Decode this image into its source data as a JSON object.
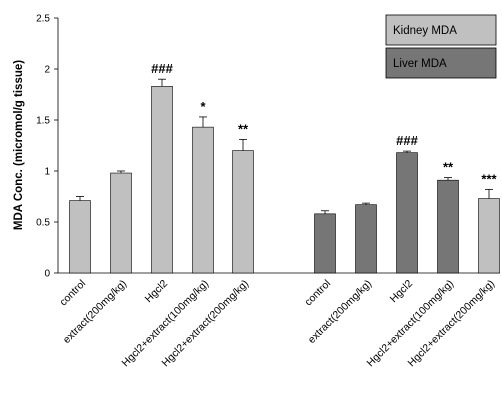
{
  "chart_data": {
    "type": "bar",
    "title": "",
    "xlabel": "",
    "ylabel": "MDA Conc. (micromol/g tissue)",
    "ylim": [
      0,
      2.5
    ],
    "yticks": [
      0,
      0.5,
      1,
      1.5,
      2,
      2.5
    ],
    "grid": false,
    "legend_position": "top-right",
    "legend": [
      {
        "name": "Kidney MDA",
        "color": "#c0c0c0"
      },
      {
        "name": "Liver MDA",
        "color": "#767676"
      }
    ],
    "groups": [
      {
        "name": "Kidney MDA",
        "color": "#c0c0c0",
        "categories": [
          "control",
          "extract(200mg/kg)",
          "Hgcl2",
          "Hgcl2+extract(100mg/kg)",
          "Hgcl2+extract(200mg/kg)"
        ],
        "values": [
          0.71,
          0.98,
          1.83,
          1.43,
          1.2
        ],
        "errors": [
          0.04,
          0.02,
          0.07,
          0.1,
          0.11
        ],
        "annotations": [
          "",
          "",
          "###",
          "*",
          "**"
        ],
        "bar_colors": [
          "#c0c0c0",
          "#c0c0c0",
          "#c0c0c0",
          "#c0c0c0",
          "#c0c0c0"
        ]
      },
      {
        "name": "Liver MDA",
        "color": "#767676",
        "categories": [
          "control",
          "extract(200mg/kg)",
          "Hgcl2",
          "Hgcl2+extract(100mg/kg)",
          "Hgcl2+extract(200mg/kg)"
        ],
        "values": [
          0.58,
          0.67,
          1.18,
          0.91,
          0.73
        ],
        "errors": [
          0.03,
          0.015,
          0.015,
          0.025,
          0.09
        ],
        "annotations": [
          "",
          "",
          "###",
          "**",
          "***"
        ],
        "bar_colors": [
          "#767676",
          "#767676",
          "#767676",
          "#767676",
          "#c0c0c0"
        ]
      }
    ]
  }
}
